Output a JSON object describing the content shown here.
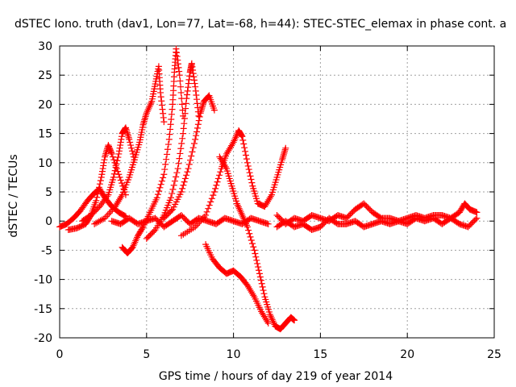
{
  "chart_data": {
    "type": "scatter",
    "title": "dSTEC Iono. truth (dav1, Lon=77, Lat=-68, h=44): STEC-STEC_elemax in phase cont. a",
    "xlabel": "GPS time / hours of day 219 of year 2014",
    "ylabel": "dSTEC  / TECUs",
    "xlim": [
      0,
      25
    ],
    "ylim": [
      -20,
      30
    ],
    "xticks": [
      0,
      5,
      10,
      15,
      20,
      25
    ],
    "yticks": [
      -20,
      -15,
      -10,
      -5,
      0,
      5,
      10,
      15,
      20,
      25,
      30
    ],
    "grid": true,
    "marker": "+",
    "color": "#ff0000",
    "series": [
      {
        "values": [
          [
            0.0,
            -1.0
          ],
          [
            0.4,
            -0.5
          ],
          [
            0.8,
            0.5
          ],
          [
            1.2,
            1.8
          ],
          [
            1.6,
            3.5
          ],
          [
            2.0,
            4.8
          ],
          [
            2.3,
            5.5
          ],
          [
            2.6,
            4.0
          ],
          [
            3.0,
            2.5
          ],
          [
            3.4,
            1.5
          ],
          [
            3.8,
            0.8
          ]
        ]
      },
      {
        "values": [
          [
            0.5,
            -1.5
          ],
          [
            1.0,
            -1.2
          ],
          [
            1.5,
            -0.5
          ],
          [
            1.8,
            1.0
          ],
          [
            2.1,
            3.5
          ],
          [
            2.4,
            7.5
          ],
          [
            2.6,
            11.0
          ],
          [
            2.8,
            13.0
          ],
          [
            3.0,
            11.5
          ],
          [
            3.4,
            8.0
          ],
          [
            3.8,
            4.5
          ]
        ]
      },
      {
        "values": [
          [
            1.3,
            0.0
          ],
          [
            1.8,
            1.0
          ],
          [
            2.3,
            2.5
          ],
          [
            2.8,
            4.5
          ],
          [
            3.1,
            7.5
          ],
          [
            3.4,
            11.5
          ],
          [
            3.6,
            15.0
          ],
          [
            3.8,
            16.0
          ],
          [
            4.0,
            14.0
          ],
          [
            4.3,
            10.5
          ]
        ]
      },
      {
        "values": [
          [
            2.0,
            -0.5
          ],
          [
            2.6,
            0.5
          ],
          [
            3.2,
            2.5
          ],
          [
            3.6,
            4.5
          ],
          [
            4.0,
            7.5
          ],
          [
            4.3,
            10.5
          ],
          [
            4.6,
            13.5
          ],
          [
            4.8,
            16.5
          ],
          [
            5.0,
            18.5
          ],
          [
            5.3,
            20.5
          ],
          [
            5.5,
            23.5
          ],
          [
            5.7,
            26.5
          ],
          [
            5.8,
            22.0
          ],
          [
            6.0,
            17.0
          ]
        ]
      },
      {
        "values": [
          [
            3.6,
            -4.5
          ],
          [
            3.9,
            -5.5
          ],
          [
            4.2,
            -4.5
          ],
          [
            4.5,
            -2.5
          ],
          [
            4.8,
            -1.0
          ],
          [
            5.2,
            1.5
          ],
          [
            5.6,
            4.0
          ],
          [
            6.0,
            8.0
          ],
          [
            6.3,
            14.0
          ],
          [
            6.5,
            20.0
          ],
          [
            6.6,
            25.5
          ],
          [
            6.7,
            29.5
          ],
          [
            6.9,
            25.0
          ],
          [
            7.1,
            18.0
          ]
        ]
      },
      {
        "values": [
          [
            5.0,
            -3.0
          ],
          [
            5.5,
            -1.5
          ],
          [
            6.0,
            1.0
          ],
          [
            6.4,
            4.0
          ],
          [
            6.8,
            9.0
          ],
          [
            7.1,
            15.0
          ],
          [
            7.3,
            21.0
          ],
          [
            7.5,
            25.5
          ],
          [
            7.6,
            27.0
          ],
          [
            7.8,
            23.0
          ],
          [
            8.0,
            18.0
          ]
        ]
      },
      {
        "values": [
          [
            6.0,
            0.5
          ],
          [
            6.5,
            2.0
          ],
          [
            7.0,
            5.0
          ],
          [
            7.4,
            9.0
          ],
          [
            7.8,
            14.0
          ],
          [
            8.1,
            18.5
          ],
          [
            8.3,
            20.5
          ],
          [
            8.6,
            21.5
          ],
          [
            8.9,
            19.0
          ]
        ]
      },
      {
        "values": [
          [
            7.0,
            -2.5
          ],
          [
            7.8,
            -1.0
          ],
          [
            8.4,
            1.0
          ],
          [
            8.9,
            5.0
          ],
          [
            9.3,
            9.0
          ],
          [
            9.6,
            11.5
          ],
          [
            10.0,
            13.5
          ],
          [
            10.3,
            15.5
          ],
          [
            10.5,
            14.5
          ],
          [
            10.8,
            10.0
          ],
          [
            11.1,
            6.0
          ],
          [
            11.4,
            3.0
          ],
          [
            11.8,
            2.5
          ],
          [
            12.2,
            4.5
          ],
          [
            12.5,
            7.5
          ],
          [
            12.8,
            10.5
          ],
          [
            13.0,
            12.5
          ]
        ]
      },
      {
        "values": [
          [
            9.2,
            11.0
          ],
          [
            9.6,
            9.0
          ],
          [
            9.9,
            6.0
          ],
          [
            10.2,
            3.0
          ],
          [
            10.5,
            1.0
          ],
          [
            10.8,
            -1.0
          ],
          [
            11.2,
            -5.0
          ],
          [
            11.5,
            -9.0
          ],
          [
            11.8,
            -13.0
          ],
          [
            12.1,
            -16.0
          ],
          [
            12.4,
            -18.0
          ],
          [
            12.7,
            -18.5
          ],
          [
            13.0,
            -17.5
          ],
          [
            13.3,
            -16.5
          ],
          [
            13.5,
            -17.0
          ]
        ]
      },
      {
        "values": [
          [
            8.4,
            -4.0
          ],
          [
            8.8,
            -6.5
          ],
          [
            9.2,
            -8.0
          ],
          [
            9.6,
            -9.0
          ],
          [
            10.0,
            -8.5
          ],
          [
            10.4,
            -9.5
          ],
          [
            10.8,
            -11.0
          ],
          [
            11.2,
            -13.0
          ],
          [
            11.6,
            -15.5
          ],
          [
            12.0,
            -17.5
          ]
        ]
      },
      {
        "values": [
          [
            12.5,
            1.0
          ],
          [
            13.0,
            -0.5
          ],
          [
            13.5,
            0.5
          ],
          [
            14.0,
            0.0
          ],
          [
            14.5,
            1.0
          ],
          [
            15.0,
            0.5
          ],
          [
            15.5,
            0.0
          ],
          [
            16.0,
            1.0
          ],
          [
            16.5,
            0.5
          ],
          [
            17.0,
            2.0
          ],
          [
            17.5,
            3.0
          ],
          [
            18.0,
            1.5
          ],
          [
            18.5,
            0.5
          ],
          [
            19.0,
            0.5
          ],
          [
            19.5,
            0.0
          ],
          [
            20.0,
            0.5
          ],
          [
            20.5,
            1.0
          ],
          [
            21.0,
            0.5
          ],
          [
            21.5,
            1.0
          ],
          [
            22.0,
            1.0
          ],
          [
            22.5,
            0.5
          ],
          [
            23.0,
            1.5
          ],
          [
            23.3,
            3.0
          ],
          [
            23.6,
            2.0
          ],
          [
            24.0,
            1.5
          ]
        ]
      },
      {
        "values": [
          [
            12.5,
            -1.0
          ],
          [
            13.0,
            0.0
          ],
          [
            13.5,
            -1.0
          ],
          [
            14.0,
            -0.5
          ],
          [
            14.5,
            -1.5
          ],
          [
            15.0,
            -1.0
          ],
          [
            15.5,
            0.5
          ],
          [
            16.0,
            -0.5
          ],
          [
            16.5,
            -0.5
          ],
          [
            17.0,
            0.0
          ],
          [
            17.5,
            -1.0
          ],
          [
            18.0,
            -0.5
          ],
          [
            18.5,
            0.0
          ],
          [
            19.0,
            -0.5
          ],
          [
            19.5,
            0.0
          ],
          [
            20.0,
            -0.5
          ],
          [
            20.5,
            0.5
          ],
          [
            21.0,
            0.0
          ],
          [
            21.5,
            0.5
          ],
          [
            22.0,
            -0.5
          ],
          [
            22.5,
            0.5
          ],
          [
            23.0,
            -0.5
          ],
          [
            23.5,
            -1.0
          ],
          [
            24.0,
            0.5
          ]
        ]
      },
      {
        "values": [
          [
            3.0,
            0.0
          ],
          [
            3.5,
            -0.5
          ],
          [
            4.0,
            0.5
          ],
          [
            4.5,
            -0.5
          ],
          [
            5.0,
            0.0
          ],
          [
            5.5,
            0.5
          ],
          [
            6.0,
            -1.0
          ],
          [
            6.5,
            0.0
          ],
          [
            7.0,
            1.0
          ],
          [
            7.5,
            -0.5
          ],
          [
            8.0,
            0.5
          ],
          [
            8.5,
            0.0
          ],
          [
            9.0,
            -0.5
          ],
          [
            9.5,
            0.5
          ],
          [
            10.0,
            0.0
          ],
          [
            10.5,
            -0.5
          ],
          [
            11.0,
            0.5
          ],
          [
            11.5,
            0.0
          ],
          [
            12.0,
            -0.5
          ]
        ]
      }
    ]
  }
}
